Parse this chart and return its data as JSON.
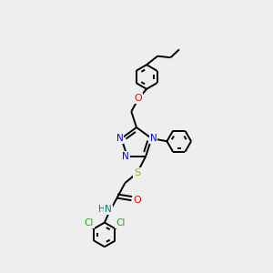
{
  "bg_color": "#eeeeee",
  "bond_color": "#000000",
  "bond_width": 1.4,
  "figsize": [
    3.0,
    3.0
  ],
  "dpi": 100,
  "xlim": [
    -0.5,
    5.5
  ],
  "ylim": [
    -3.5,
    4.5
  ]
}
